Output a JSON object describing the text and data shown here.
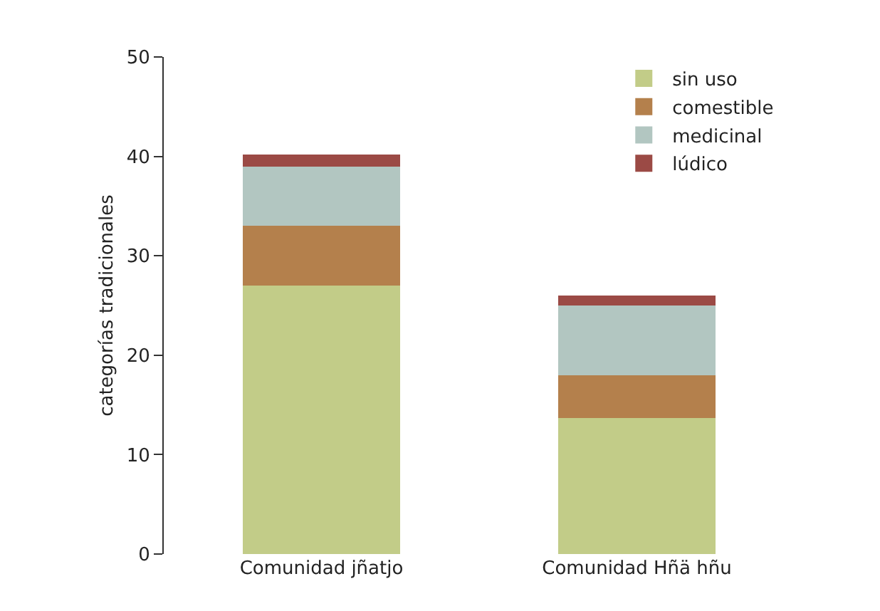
{
  "chart_data": {
    "type": "bar",
    "ylabel": "categorías tradicionales",
    "categories": [
      "Comunidad jñatjo",
      "Comunidad Hñä hñu"
    ],
    "stacked": true,
    "series": [
      {
        "name": "sin uso",
        "color": "#c2cc88",
        "values": [
          27,
          13.7
        ]
      },
      {
        "name": "comestible",
        "color": "#b4804c",
        "values": [
          6,
          4.3
        ]
      },
      {
        "name": "medicinal",
        "color": "#b2c6c1",
        "values": [
          6,
          7
        ]
      },
      {
        "name": "lúdico",
        "color": "#9b4a45",
        "values": [
          1.2,
          1
        ]
      }
    ],
    "ylim": [
      0,
      50
    ],
    "yticks": [
      0,
      10,
      20,
      30,
      40,
      50
    ],
    "grid": false,
    "legend": "top right"
  }
}
